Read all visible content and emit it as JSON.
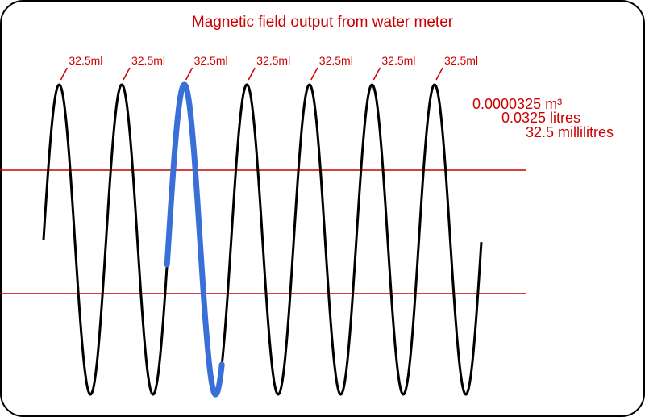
{
  "title": "Magnetic field output from water meter",
  "pulse_labels": [
    "32.5ml",
    "32.5ml",
    "32.5ml",
    "32.5ml",
    "32.5ml",
    "32.5ml",
    "32.5ml"
  ],
  "volume": [
    "0.0000325 m³",
    "0.0325 litres",
    "32.5 millilitres"
  ]
}
